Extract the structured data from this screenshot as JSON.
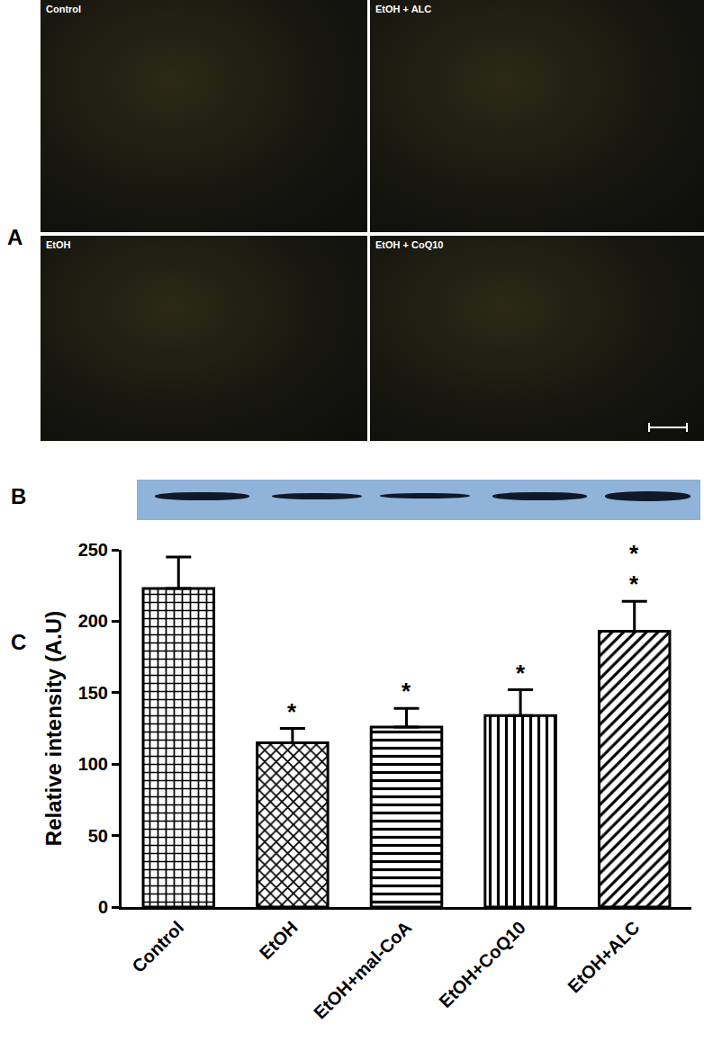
{
  "figure": {
    "panel_labels": [
      "A",
      "B",
      "C"
    ],
    "images": [
      "Control",
      "EtOH + ALC",
      "EtOH",
      "EtOH + CoQ10"
    ]
  },
  "chart_data": {
    "type": "bar",
    "categories": [
      "Control",
      "EtOH",
      "EtOH+mal-CoA",
      "EtOH+CoQ10",
      "EtOH+ALC"
    ],
    "values": [
      223,
      115,
      126,
      134,
      193
    ],
    "errors": [
      22,
      10,
      13,
      18,
      21
    ],
    "significance": [
      null,
      "*",
      "*",
      "*",
      "**"
    ],
    "y_label": "Relative intensity (A.U)",
    "ylim": [
      0,
      250
    ],
    "yticks": [
      0,
      50,
      100,
      150,
      200,
      250
    ],
    "color": "#ffffff",
    "grid": false
  }
}
